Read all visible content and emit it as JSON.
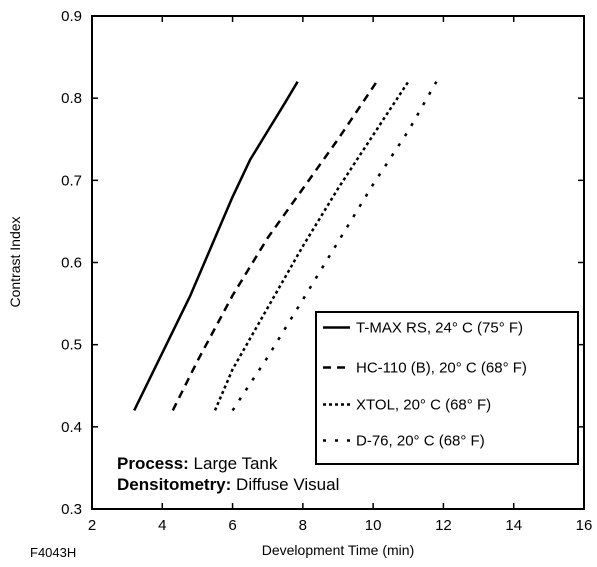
{
  "chart_data": {
    "type": "line",
    "xlabel": "Development Time (min)",
    "ylabel": "Contrast Index",
    "xlim": [
      2,
      16
    ],
    "ylim": [
      0.3,
      0.9
    ],
    "xticks": [
      "2",
      "4",
      "6",
      "8",
      "10",
      "12",
      "14",
      "16"
    ],
    "yticks": [
      "0.3",
      "0.4",
      "0.5",
      "0.6",
      "0.7",
      "0.8",
      "0.9"
    ],
    "grid": false,
    "legend_position": "bottom-right",
    "series": [
      {
        "name": "T-MAX RS, 24° C (75° F)",
        "style": "solid",
        "x": [
          3.2,
          4.0,
          4.8,
          5.5,
          6.0,
          6.5,
          7.0,
          7.5,
          7.85
        ],
        "y": [
          0.42,
          0.49,
          0.56,
          0.63,
          0.68,
          0.725,
          0.76,
          0.795,
          0.82
        ]
      },
      {
        "name": "HC-110 (B), 20° C (68° F)",
        "style": "dashed",
        "x": [
          4.3,
          5.0,
          6.0,
          7.0,
          8.0,
          9.0,
          10.1
        ],
        "y": [
          0.42,
          0.48,
          0.56,
          0.63,
          0.69,
          0.75,
          0.82
        ]
      },
      {
        "name": "XTOL, 20° C (68° F)",
        "style": "dotted",
        "x": [
          5.5,
          6.0,
          7.0,
          8.0,
          9.0,
          10.0,
          11.0
        ],
        "y": [
          0.42,
          0.47,
          0.545,
          0.62,
          0.69,
          0.755,
          0.82
        ]
      },
      {
        "name": "D-76, 20° C (68° F)",
        "style": "sparse-dotted",
        "x": [
          6.0,
          7.0,
          8.0,
          9.0,
          10.0,
          11.0,
          11.8
        ],
        "y": [
          0.42,
          0.485,
          0.555,
          0.625,
          0.695,
          0.76,
          0.82
        ]
      }
    ],
    "annotations": [
      {
        "bold": "Process:",
        "text": " Large Tank"
      },
      {
        "bold": "Densitometry:",
        "text": " Diffuse Visual"
      }
    ],
    "figure_id": "F4043H"
  }
}
